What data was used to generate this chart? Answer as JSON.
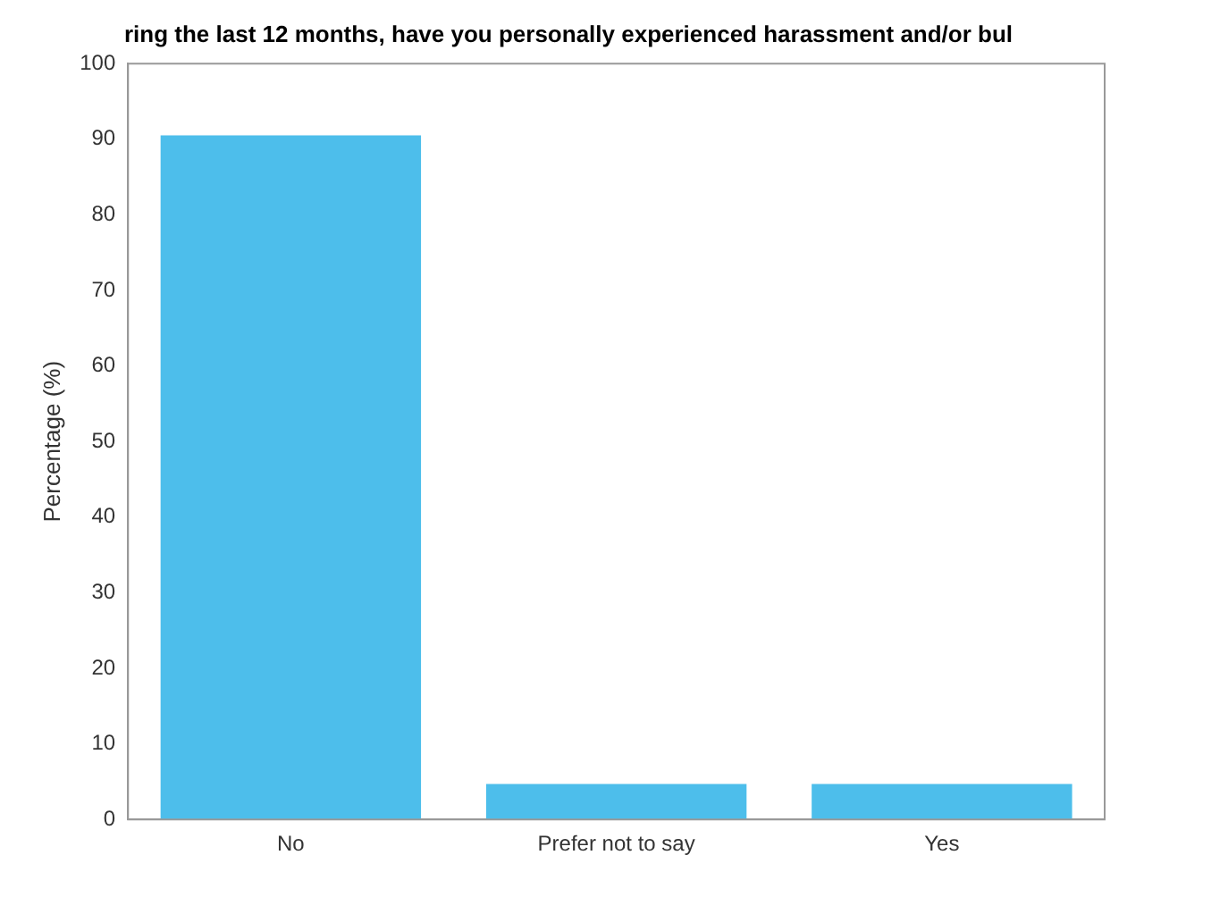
{
  "chart_data": {
    "type": "bar",
    "title": "ring the last 12 months, have you personally experienced harassment and/or bul",
    "ylabel": "Percentage (%)",
    "categories": [
      "No",
      "Prefer not to say",
      "Yes"
    ],
    "values": [
      90.5,
      4.7,
      4.7
    ],
    "color": "#4dbeeb",
    "ylim": [
      0,
      100
    ],
    "yticks": [
      0,
      10,
      20,
      30,
      40,
      50,
      60,
      70,
      80,
      90,
      100
    ],
    "grid": false
  }
}
